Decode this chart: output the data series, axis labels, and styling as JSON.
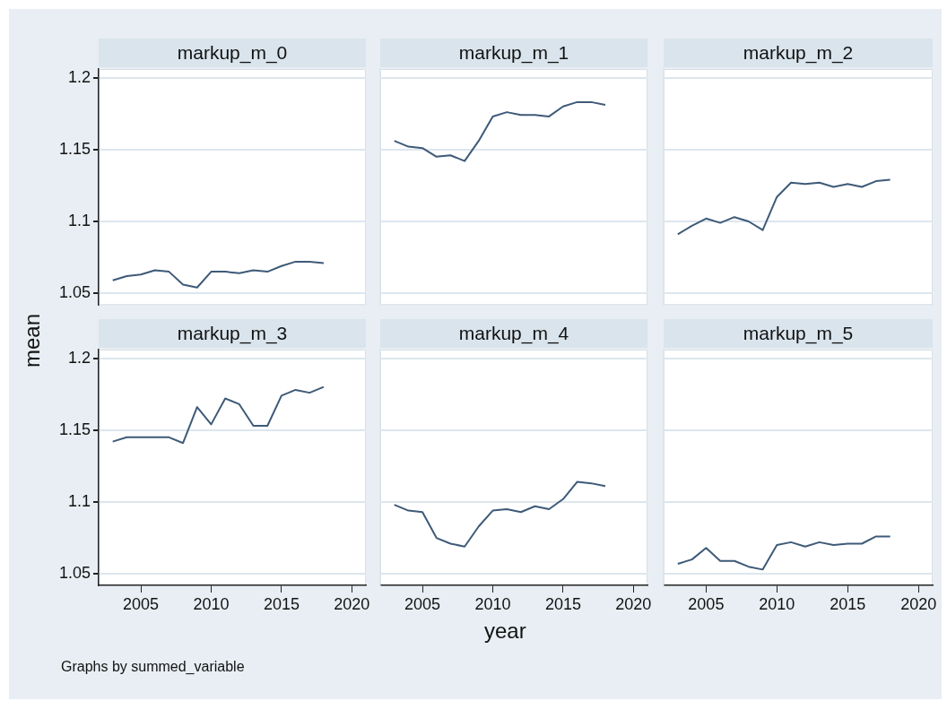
{
  "chart_data": [
    {
      "type": "line",
      "title": "markup_m_0",
      "ylabel": "mean",
      "x": [
        2003,
        2004,
        2005,
        2006,
        2007,
        2008,
        2009,
        2010,
        2011,
        2012,
        2013,
        2014,
        2015,
        2016,
        2017,
        2018
      ],
      "series": [
        {
          "color": "#3e5a78",
          "values": [
            1.059,
            1.062,
            1.063,
            1.066,
            1.065,
            1.056,
            1.054,
            1.065,
            1.065,
            1.064,
            1.066,
            1.065,
            1.069,
            1.072,
            1.072,
            1.071
          ]
        }
      ],
      "xlim": [
        2002,
        2021
      ],
      "xticks": [
        2005,
        2010,
        2015,
        2020
      ],
      "ylim": [
        1.042,
        1.206
      ],
      "yticks": [
        1.05,
        1.1,
        1.15,
        1.2
      ],
      "tick_labels": "y",
      "grid": "y",
      "marker": "none",
      "line_style": "solid"
    },
    {
      "type": "line",
      "title": "markup_m_1",
      "x": [
        2003,
        2004,
        2005,
        2006,
        2007,
        2008,
        2009,
        2010,
        2011,
        2012,
        2013,
        2014,
        2015,
        2016,
        2017,
        2018
      ],
      "series": [
        {
          "color": "#3e5a78",
          "values": [
            1.156,
            1.152,
            1.151,
            1.145,
            1.146,
            1.142,
            1.156,
            1.173,
            1.176,
            1.174,
            1.174,
            1.173,
            1.18,
            1.183,
            1.183,
            1.181
          ]
        }
      ],
      "xlim": [
        2002,
        2021
      ],
      "xticks": [
        2005,
        2010,
        2015,
        2020
      ],
      "ylim": [
        1.042,
        1.206
      ],
      "yticks": [
        1.05,
        1.1,
        1.15,
        1.2
      ],
      "tick_labels": false,
      "grid": "y",
      "marker": "none",
      "line_style": "solid"
    },
    {
      "type": "line",
      "title": "markup_m_2",
      "x": [
        2003,
        2004,
        2005,
        2006,
        2007,
        2008,
        2009,
        2010,
        2011,
        2012,
        2013,
        2014,
        2015,
        2016,
        2017,
        2018
      ],
      "series": [
        {
          "color": "#3e5a78",
          "values": [
            1.091,
            1.097,
            1.102,
            1.099,
            1.103,
            1.1,
            1.094,
            1.117,
            1.127,
            1.126,
            1.127,
            1.124,
            1.126,
            1.124,
            1.128,
            1.129
          ]
        }
      ],
      "xlim": [
        2002,
        2021
      ],
      "xticks": [
        2005,
        2010,
        2015,
        2020
      ],
      "ylim": [
        1.042,
        1.206
      ],
      "yticks": [
        1.05,
        1.1,
        1.15,
        1.2
      ],
      "tick_labels": false,
      "grid": "y",
      "marker": "none",
      "line_style": "solid"
    },
    {
      "type": "line",
      "title": "markup_m_3",
      "annotations": [
        "Graphs by summed_variable"
      ],
      "x": [
        2003,
        2004,
        2005,
        2006,
        2007,
        2008,
        2009,
        2010,
        2011,
        2012,
        2013,
        2014,
        2015,
        2016,
        2017,
        2018
      ],
      "series": [
        {
          "color": "#3e5a78",
          "values": [
            1.142,
            1.145,
            1.145,
            1.145,
            1.145,
            1.141,
            1.166,
            1.154,
            1.172,
            1.168,
            1.153,
            1.153,
            1.174,
            1.178,
            1.176,
            1.18
          ]
        }
      ],
      "xlim": [
        2002,
        2021
      ],
      "xticks": [
        2005,
        2010,
        2015,
        2020
      ],
      "ylim": [
        1.042,
        1.206
      ],
      "yticks": [
        1.05,
        1.1,
        1.15,
        1.2
      ],
      "grid": "y",
      "marker": "none",
      "line_style": "solid"
    },
    {
      "type": "line",
      "title": "markup_m_4",
      "xlabel": "year",
      "x": [
        2003,
        2004,
        2005,
        2006,
        2007,
        2008,
        2009,
        2010,
        2011,
        2012,
        2013,
        2014,
        2015,
        2016,
        2017,
        2018
      ],
      "series": [
        {
          "color": "#3e5a78",
          "values": [
            1.098,
            1.094,
            1.093,
            1.075,
            1.071,
            1.069,
            1.083,
            1.094,
            1.095,
            1.093,
            1.097,
            1.095,
            1.102,
            1.114,
            1.113,
            1.111
          ]
        }
      ],
      "xlim": [
        2002,
        2021
      ],
      "xticks": [
        2005,
        2010,
        2015,
        2020
      ],
      "ylim": [
        1.042,
        1.206
      ],
      "yticks": [
        1.05,
        1.1,
        1.15,
        1.2
      ],
      "tick_labels": "x",
      "grid": "y",
      "marker": "none",
      "line_style": "solid"
    },
    {
      "type": "line",
      "title": "markup_m_5",
      "x": [
        2003,
        2004,
        2005,
        2006,
        2007,
        2008,
        2009,
        2010,
        2011,
        2012,
        2013,
        2014,
        2015,
        2016,
        2017,
        2018
      ],
      "series": [
        {
          "color": "#3e5a78",
          "values": [
            1.057,
            1.06,
            1.068,
            1.059,
            1.059,
            1.055,
            1.053,
            1.07,
            1.072,
            1.069,
            1.072,
            1.07,
            1.071,
            1.071,
            1.076,
            1.076
          ]
        }
      ],
      "xlim": [
        2002,
        2021
      ],
      "xticks": [
        2005,
        2010,
        2015,
        2020
      ],
      "ylim": [
        1.042,
        1.206
      ],
      "yticks": [
        1.05,
        1.1,
        1.15,
        1.2
      ],
      "tick_labels": "x",
      "grid": "y",
      "marker": "none",
      "line_style": "solid"
    }
  ]
}
